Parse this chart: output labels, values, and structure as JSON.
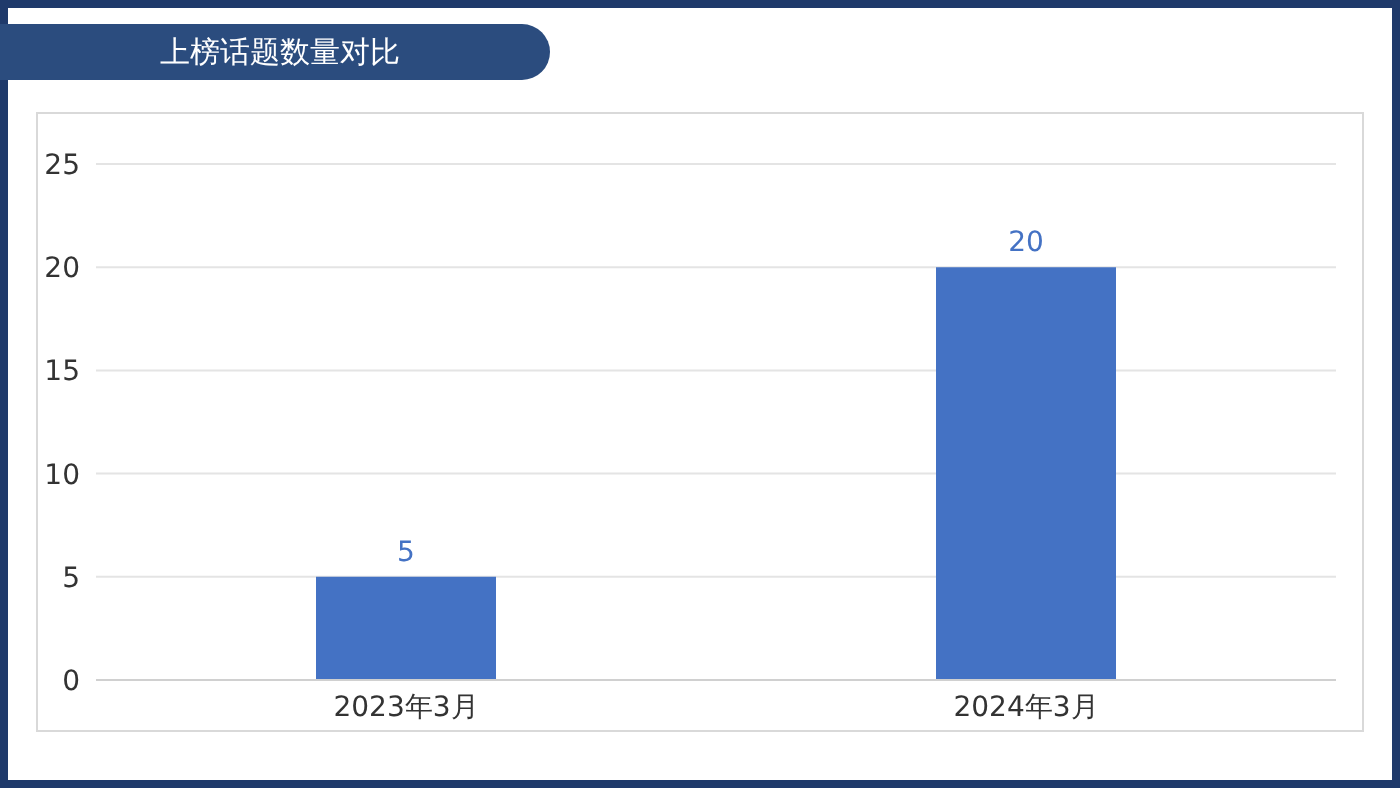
{
  "chart_data": {
    "type": "bar",
    "title": "上榜话题数量对比",
    "categories": [
      "2023年3月",
      "2024年3月"
    ],
    "values": [
      5,
      20
    ],
    "color": "#4472c4",
    "ylim": [
      0,
      25
    ],
    "yticks": [
      0,
      5,
      10,
      15,
      20,
      25
    ],
    "grid": "y",
    "data_labels": true
  }
}
